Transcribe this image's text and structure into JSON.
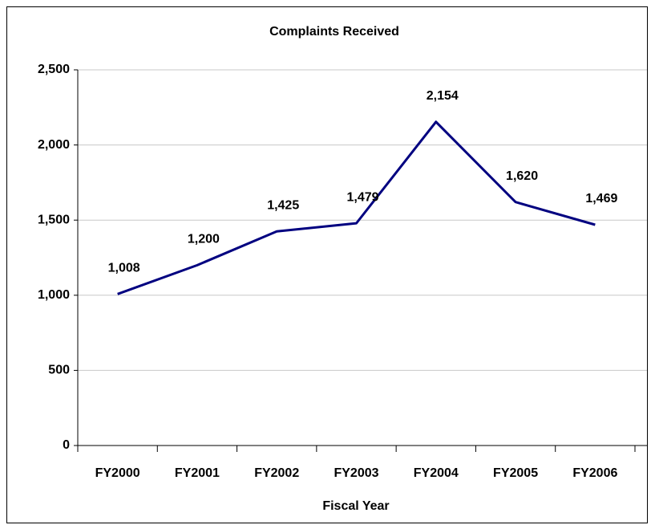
{
  "chart_data": {
    "type": "line",
    "title": "Complaints Received",
    "x_label": "Fiscal Year",
    "categories": [
      "FY2000",
      "FY2001",
      "FY2002",
      "FY2003",
      "FY2004",
      "FY2005",
      "FY2006"
    ],
    "series": [
      {
        "name": "Complaints Received",
        "color": "#000080",
        "values": [
          1008,
          1200,
          1425,
          1479,
          2154,
          1620,
          1469
        ],
        "value_labels": [
          "1,008",
          "1,200",
          "1,425",
          "1,479",
          "2,154",
          "1,620",
          "1,469"
        ]
      }
    ],
    "ylim": [
      0,
      2500
    ],
    "yticks": [
      0,
      500,
      {
        "value": 1000,
        "label": "1,000"
      },
      {
        "value": 1500,
        "label": "1,500"
      },
      {
        "value": 2000,
        "label": "2,000"
      },
      {
        "value": 2500,
        "label": "2,500"
      }
    ],
    "grid": true
  }
}
